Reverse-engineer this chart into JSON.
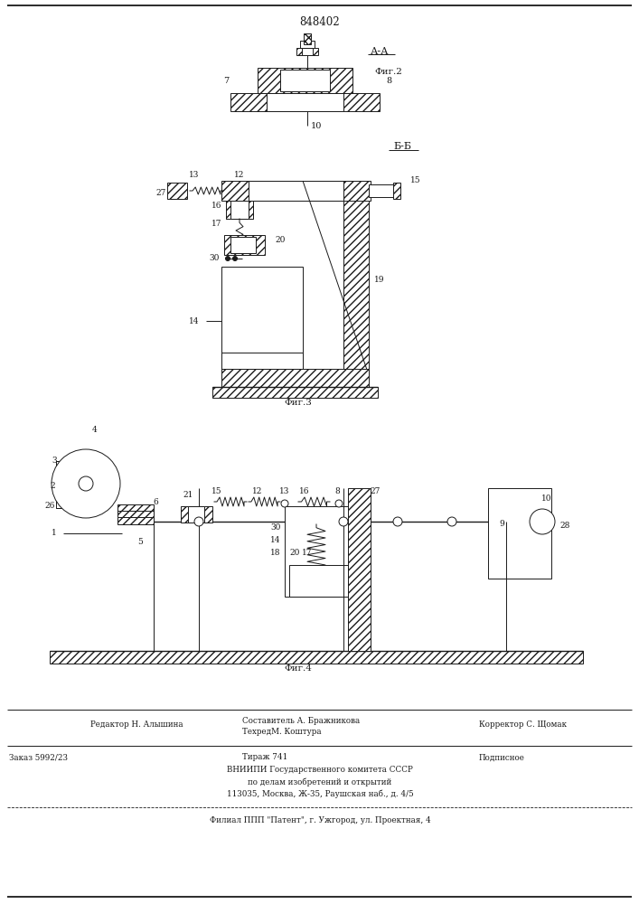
{
  "patent_number": "848402",
  "background_color": "#ffffff",
  "line_color": "#1a1a1a",
  "fig_width": 7.07,
  "fig_height": 10.0,
  "dpi": 100,
  "section_aa": "А-А",
  "section_bb": "Б-Б",
  "fig2_label": "Фиг.2",
  "fig3_label": "Фиг.3",
  "fig4_label": "Фиг.4",
  "filial_line": "Филиал ППП \"Патент\", г. Ужгород, ул. Проектная, 4"
}
